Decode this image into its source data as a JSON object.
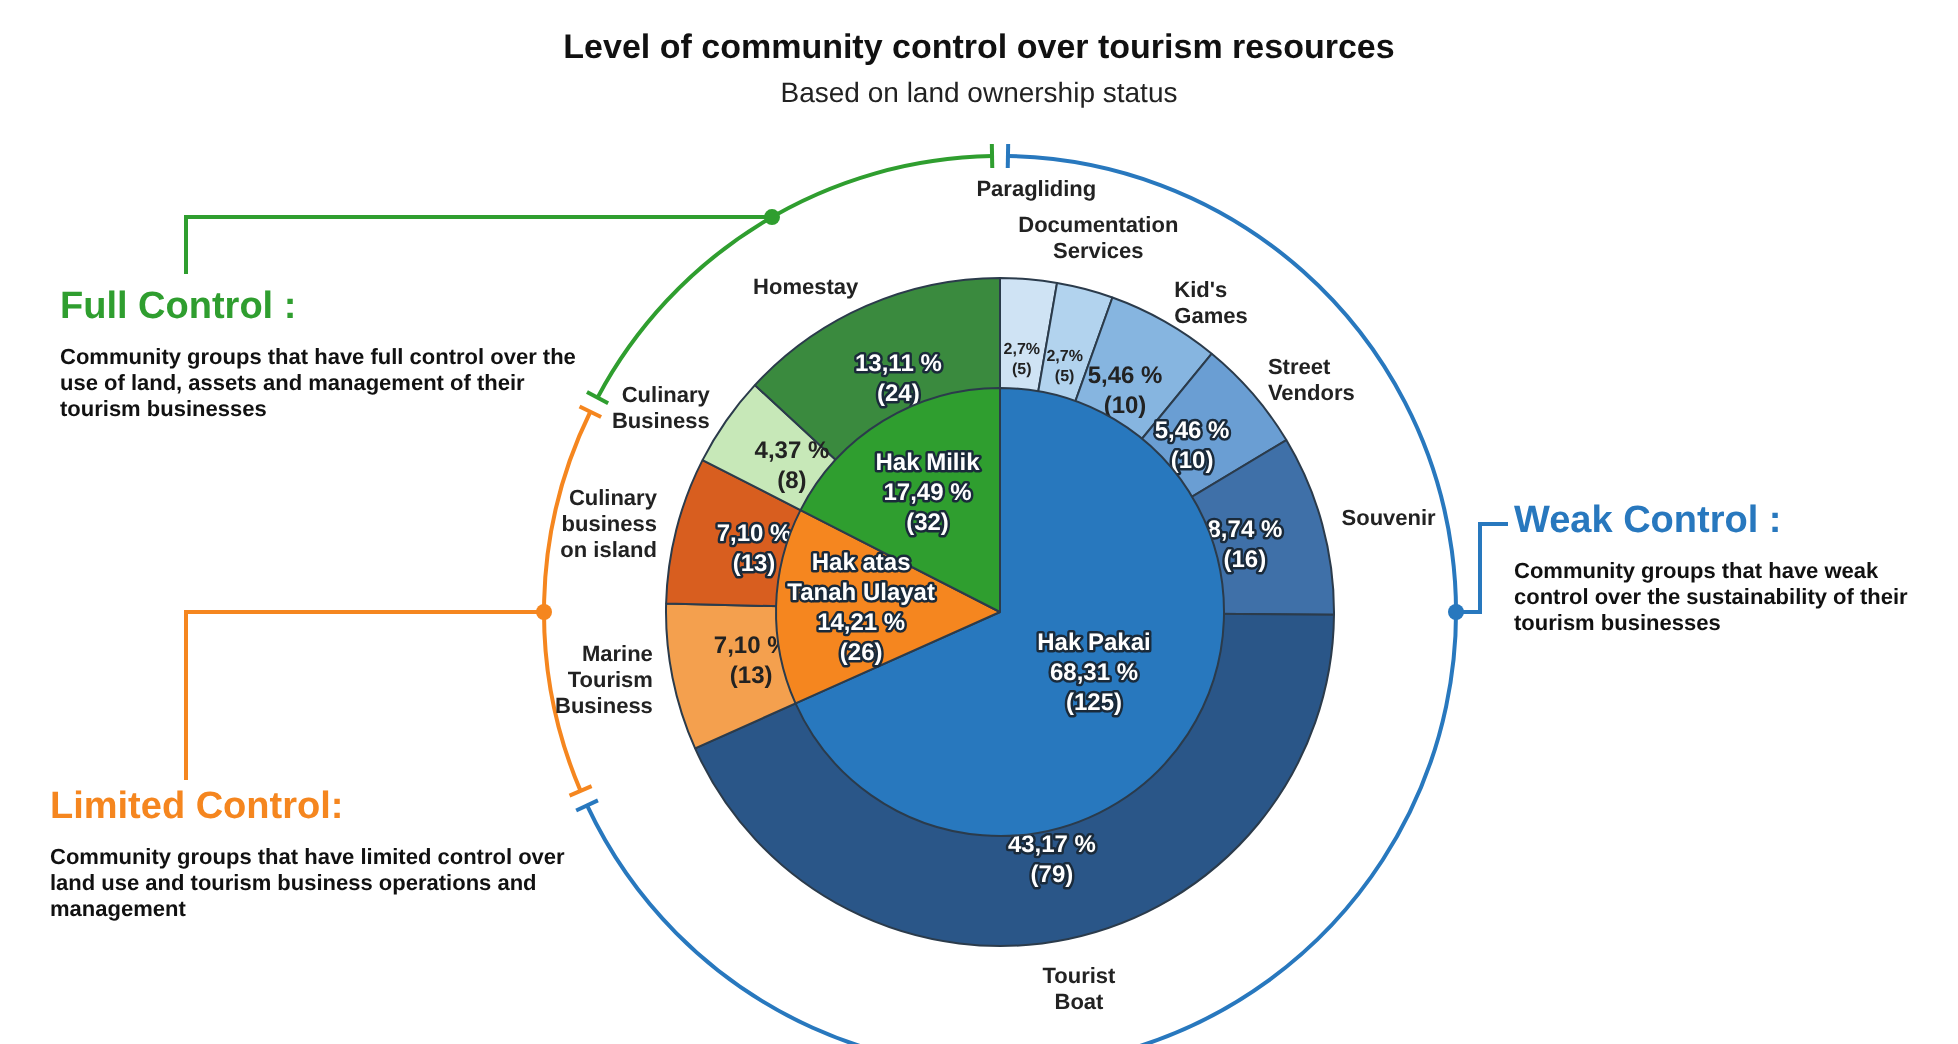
{
  "chart_data": [
    {
      "type": "pie",
      "title": "Level of community control over tourism resources",
      "subtitle": "Based on land ownership status",
      "categories": [
        "Hak Pakai",
        "Hak atas Tanah Ulayat",
        "Hak Milik"
      ],
      "values": [
        125,
        26,
        32
      ],
      "value_labels": [
        "68,31 %\n(125)",
        "14,21 %\n(26)",
        "17,49 %\n(32)"
      ],
      "colors": [
        "#2878be",
        "#f5861f",
        "#2f9e2f"
      ],
      "annotations": [
        "Weak Control :",
        "Community groups that have weak control over the sustainability of their tourism businesses",
        "Limited Control:",
        "Community groups that have limited control over land use and tourism business operations and management",
        "Full Control :",
        "Community groups that have full control over the use of land, assets and management of their tourism businesses"
      ]
    },
    {
      "type": "donut",
      "categories": [
        "Paragliding",
        "Documentation Services",
        "Kid's Games",
        "Street Vendors",
        "Souvenir",
        "Tourist Boat",
        "Marine Tourism Business",
        "Culinary business on island",
        "Culinary Business",
        "Homestay"
      ],
      "values": [
        5,
        5,
        10,
        10,
        16,
        79,
        13,
        13,
        8,
        24
      ],
      "value_labels": [
        "2,7%\n(5)",
        "2,7%\n(5)",
        "5,46 %\n(10)",
        "5,46 %\n(10)",
        "8,74 %\n(16)",
        "43,17 %\n(79)",
        "7,10 %\n(13)",
        "7,10 %\n(13)",
        "4,37 %\n(8)",
        "13,11 %\n(24)"
      ],
      "colors": [
        "#cfe3f4",
        "#b2d3ee",
        "#86b5e0",
        "#6a9ed3",
        "#3f70a8",
        "#2a5688",
        "#f4a04e",
        "#d85e1f",
        "#c7e8b8",
        "#3a8a3e"
      ]
    }
  ]
}
